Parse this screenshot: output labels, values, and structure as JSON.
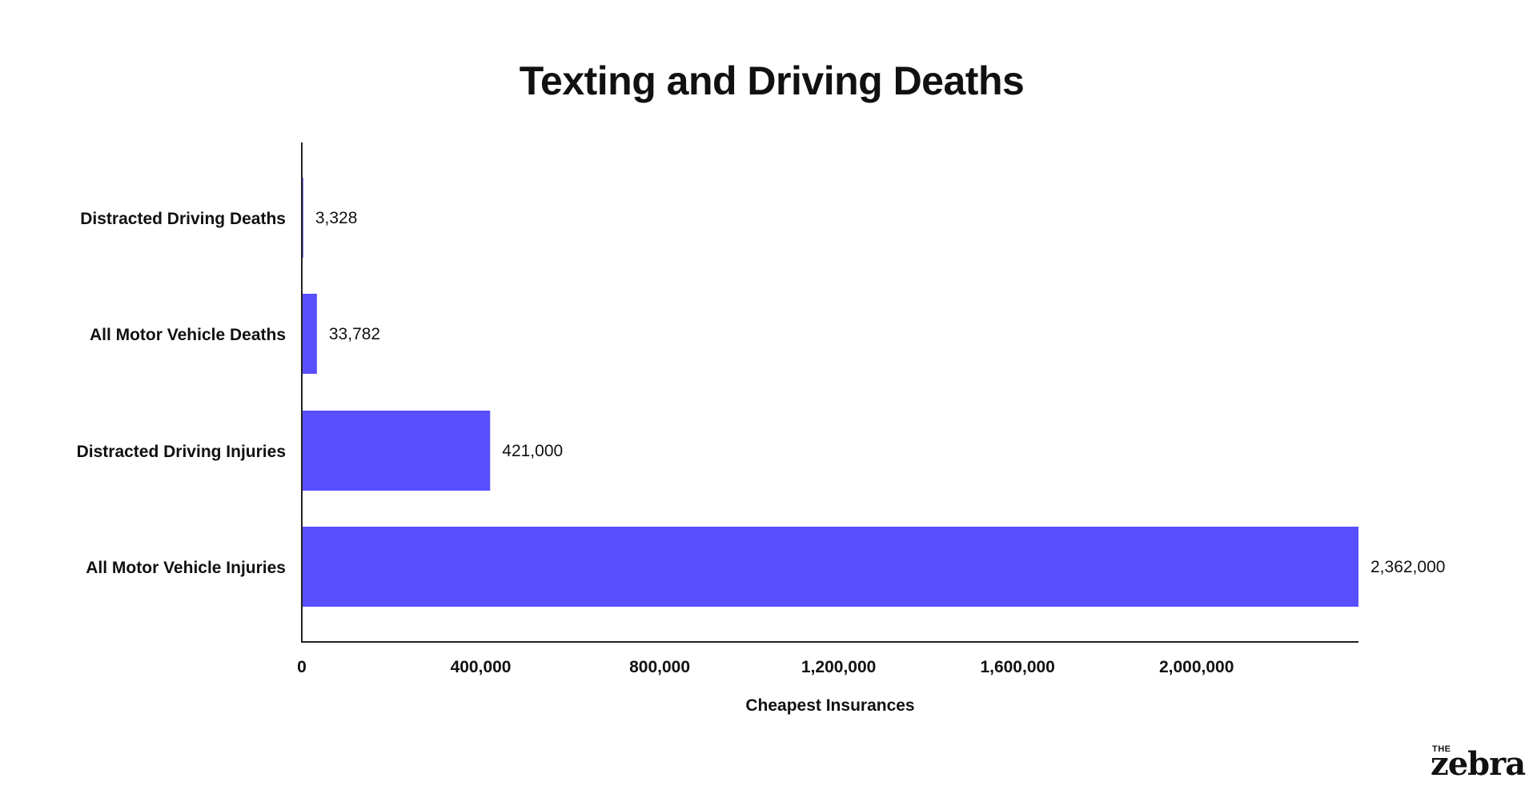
{
  "chart_data": {
    "type": "bar",
    "orientation": "horizontal",
    "title": "Texting and Driving Deaths",
    "xlabel": "Cheapest Insurances",
    "ylabel": "",
    "categories": [
      "Distracted Driving Deaths",
      "All Motor Vehicle Deaths",
      "Distracted Driving Injuries",
      "All Motor Vehicle Injuries"
    ],
    "values": [
      3328,
      33782,
      421000,
      2362000
    ],
    "value_labels": [
      "3,328",
      "33,782",
      "421,000",
      "2,362,000"
    ],
    "xlim": [
      0,
      2362000
    ],
    "x_ticks": [
      0,
      400000,
      800000,
      1200000,
      1600000,
      2000000
    ],
    "x_tick_labels": [
      "0",
      "400,000",
      "800,000",
      "1,200,000",
      "1,600,000",
      "2,000,000"
    ],
    "bar_color": "#594ffe",
    "grid": false,
    "legend": "none"
  },
  "brand": {
    "small": "THE",
    "main": "zebra"
  }
}
